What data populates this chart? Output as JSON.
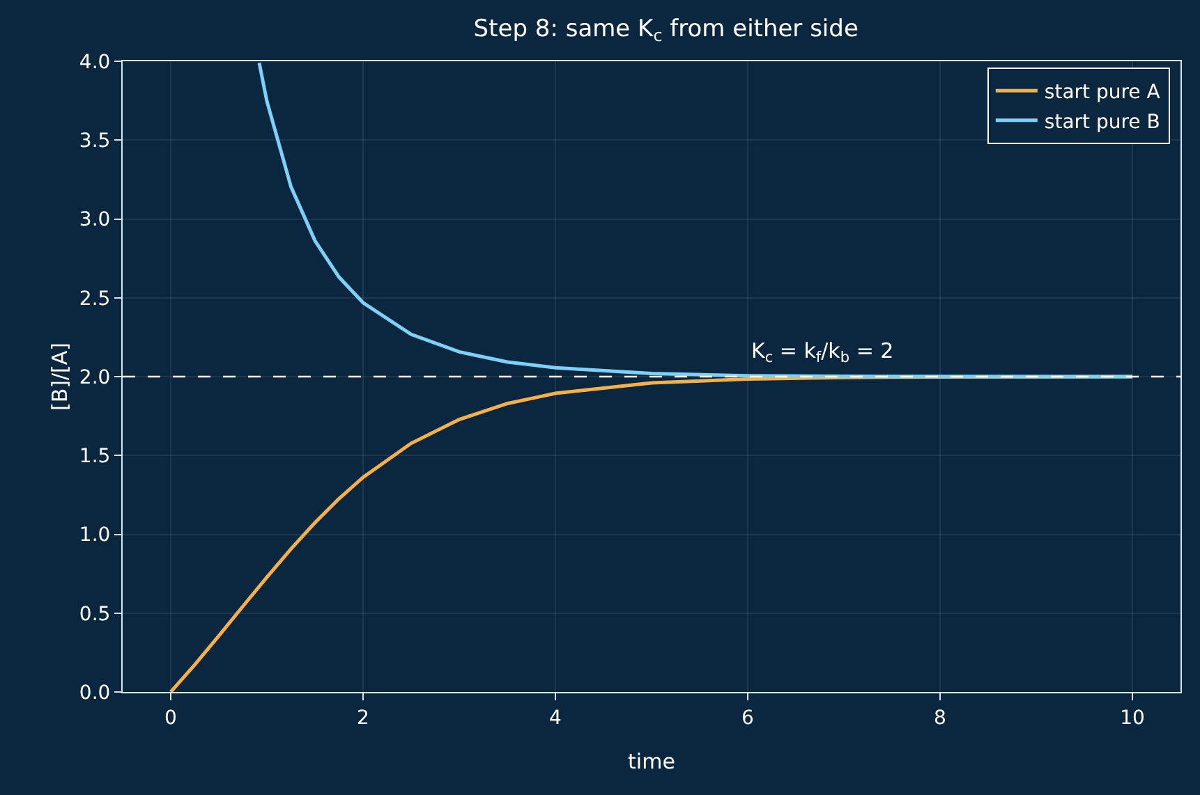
{
  "chart_data": {
    "type": "line",
    "title": "Step 8: same K$_{c}$ from either side",
    "xlabel": "time",
    "ylabel": "[B]/[A]",
    "series": [
      {
        "name": "start pure A",
        "color": "#f5b04a",
        "x": [
          0,
          0.25,
          0.5,
          0.75,
          1,
          1.25,
          1.5,
          1.75,
          2,
          2.5,
          3,
          3.5,
          4,
          5,
          6,
          7,
          8,
          10
        ],
        "values": [
          0,
          0.173,
          0.356,
          0.543,
          0.728,
          0.907,
          1.074,
          1.226,
          1.361,
          1.577,
          1.728,
          1.829,
          1.894,
          1.96,
          1.985,
          1.995,
          1.998,
          2.0
        ]
      },
      {
        "name": "start pure B",
        "color": "#7fd0f7",
        "x": [
          0.92,
          1,
          1.25,
          1.5,
          1.75,
          2,
          2.5,
          3,
          3.5,
          4,
          5,
          6,
          7,
          8,
          10
        ],
        "values": [
          3.99,
          3.746,
          3.205,
          2.862,
          2.631,
          2.469,
          2.268,
          2.157,
          2.093,
          2.056,
          2.02,
          2.005,
          2.002,
          2.001,
          2.0
        ]
      }
    ],
    "ref_lines": [
      {
        "axis": "y",
        "value": 2,
        "color": "#ffffff",
        "line_style": "dashed"
      }
    ],
    "annotations": [
      {
        "text": "K$_{c}$ = k$_{f}$/k$_{b}$ = 2",
        "x": 6,
        "y": 2.05
      }
    ],
    "xlim": [
      -0.5,
      10.5
    ],
    "xticks": [
      0,
      2,
      4,
      6,
      8,
      10
    ],
    "ylim": [
      0,
      4
    ],
    "yticks": [
      {
        "value": 0,
        "label": "0.0"
      },
      {
        "value": 0.5,
        "label": "0.5"
      },
      {
        "value": 1,
        "label": "1.0"
      },
      {
        "value": 1.5,
        "label": "1.5"
      },
      {
        "value": 2,
        "label": "2.0"
      },
      {
        "value": 2.5,
        "label": "2.5"
      },
      {
        "value": 3,
        "label": "3.0"
      },
      {
        "value": 3.5,
        "label": "3.5"
      },
      {
        "value": 4,
        "label": "4.0"
      }
    ],
    "grid": true,
    "legend": "top right",
    "marker": "none",
    "line_style": "solid"
  }
}
